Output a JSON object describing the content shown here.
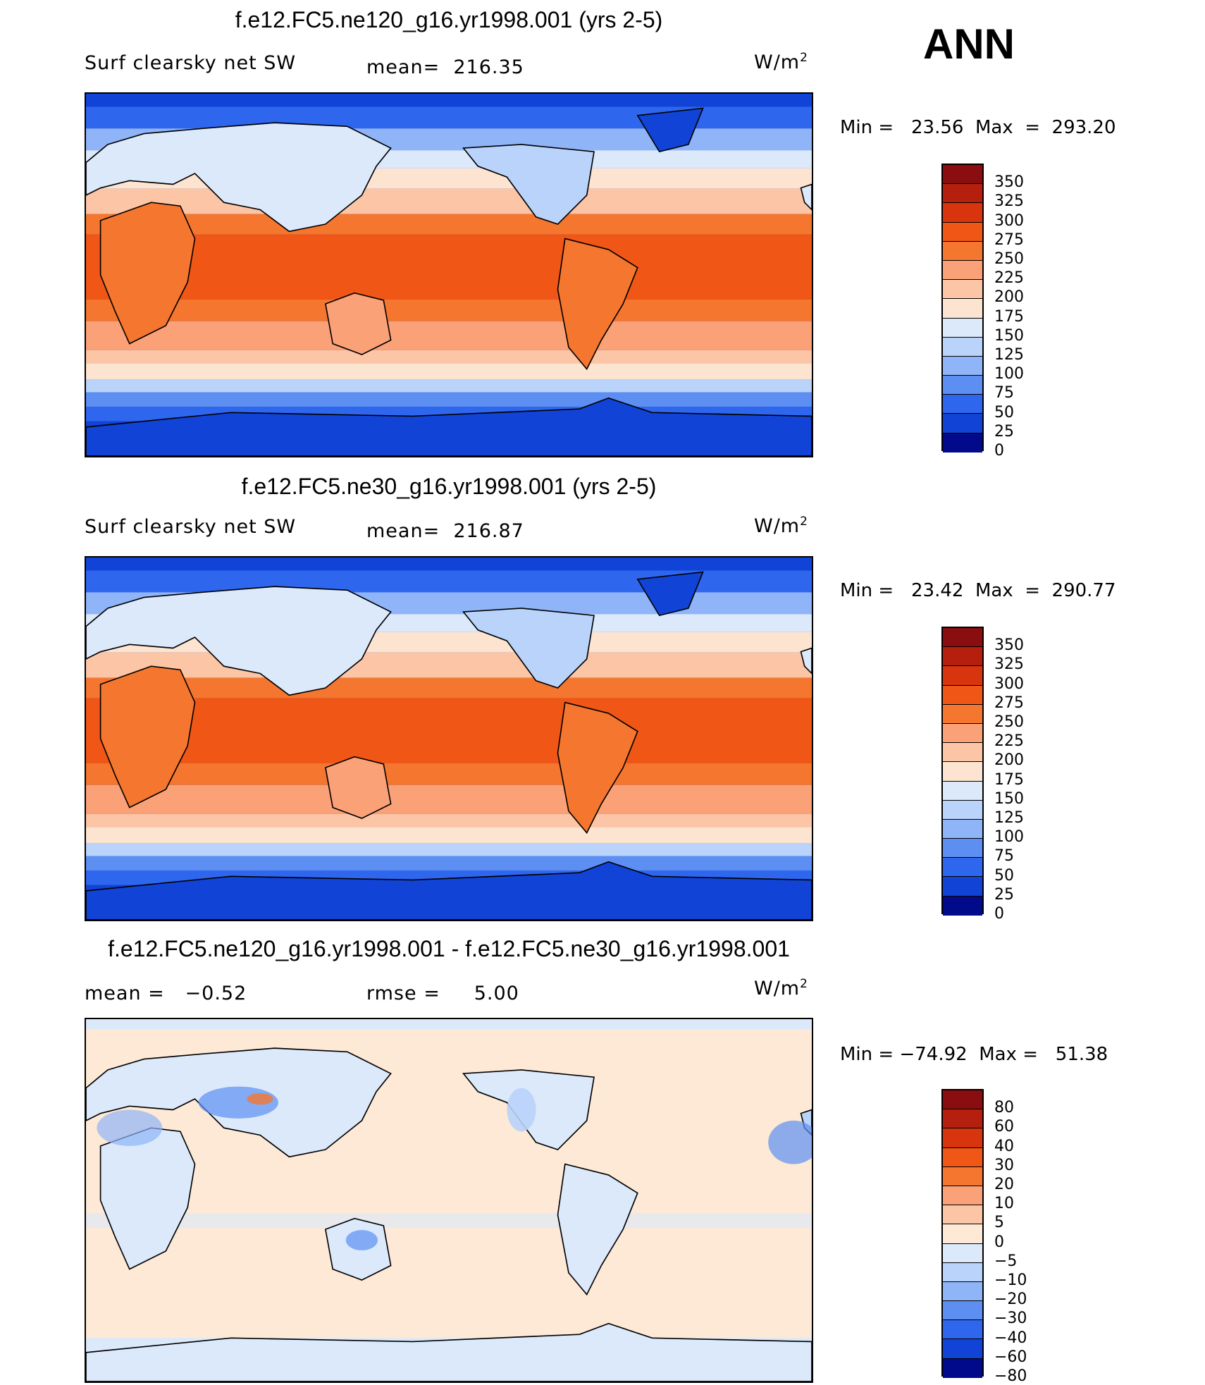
{
  "season": "ANN",
  "panels": [
    {
      "title": "f.e12.FC5.ne120_g16.yr1998.001 (yrs 2-5)",
      "left_label": "Surf clearsky net SW",
      "center_label": "mean=  216.35",
      "units_base": "W/m",
      "units_exp": "2",
      "minmax": "Min =   23.56  Max  =  293.20",
      "colorbar": {
        "labels": [
          "350",
          "325",
          "300",
          "275",
          "250",
          "225",
          "200",
          "175",
          "150",
          "125",
          "100",
          "75",
          "50",
          "25",
          "0"
        ],
        "colors": [
          "#8a0d0f",
          "#b5200e",
          "#d8350f",
          "#f05616",
          "#f5772f",
          "#fba178",
          "#fcc5a5",
          "#fde4d0",
          "#dbe9fb",
          "#b9d3fa",
          "#8fb4f7",
          "#5d8ef2",
          "#2f66ee",
          "#1144d6",
          "#000a8a"
        ]
      }
    },
    {
      "title": "f.e12.FC5.ne30_g16.yr1998.001 (yrs 2-5)",
      "left_label": "Surf clearsky net SW",
      "center_label": "mean=  216.87",
      "units_base": "W/m",
      "units_exp": "2",
      "minmax": "Min =   23.42  Max  =  290.77",
      "colorbar": {
        "labels": [
          "350",
          "325",
          "300",
          "275",
          "250",
          "225",
          "200",
          "175",
          "150",
          "125",
          "100",
          "75",
          "50",
          "25",
          "0"
        ],
        "colors": [
          "#8a0d0f",
          "#b5200e",
          "#d8350f",
          "#f05616",
          "#f5772f",
          "#fba178",
          "#fcc5a5",
          "#fde4d0",
          "#dbe9fb",
          "#b9d3fa",
          "#8fb4f7",
          "#5d8ef2",
          "#2f66ee",
          "#1144d6",
          "#000a8a"
        ]
      }
    },
    {
      "title": "f.e12.FC5.ne120_g16.yr1998.001 - f.e12.FC5.ne30_g16.yr1998.001",
      "left_label": "mean =   −0.52",
      "center_label": "rmse =     5.00",
      "units_base": "W/m",
      "units_exp": "2",
      "minmax": "Min = −74.92  Max =   51.38",
      "colorbar": {
        "labels": [
          "80",
          "60",
          "40",
          "30",
          "20",
          "10",
          "5",
          "0",
          "−5",
          "−10",
          "−20",
          "−30",
          "−40",
          "−60",
          "−80"
        ],
        "colors": [
          "#8a0d0f",
          "#b5200e",
          "#d8350f",
          "#f05616",
          "#f5772f",
          "#fba178",
          "#fcc5a5",
          "#fde9d6",
          "#dbe9fb",
          "#b9d3fa",
          "#8fb4f7",
          "#5d8ef2",
          "#2f66ee",
          "#1144d6",
          "#000a8a"
        ]
      }
    }
  ]
}
